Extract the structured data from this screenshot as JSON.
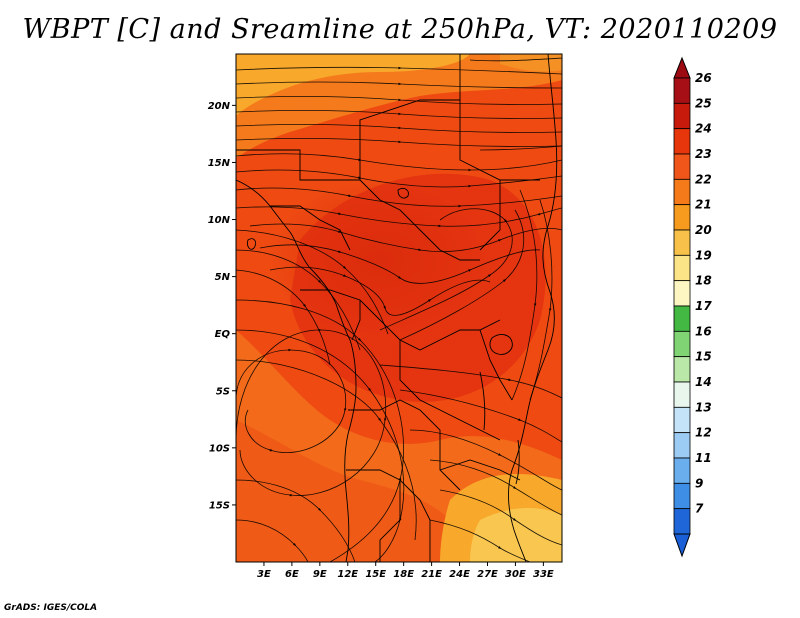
{
  "title": "WBPT [C] and Sreamline at 250hPa, VT: 2020110209",
  "footer": "GrADS: IGES/COLA",
  "map": {
    "lon_range": [
      0,
      35
    ],
    "lat_range": [
      -20,
      24.5
    ],
    "lat_ticks": [
      {
        "value": 20,
        "label": "20N"
      },
      {
        "value": 15,
        "label": "15N"
      },
      {
        "value": 10,
        "label": "10N"
      },
      {
        "value": 5,
        "label": "5N"
      },
      {
        "value": 0,
        "label": "EQ"
      },
      {
        "value": -5,
        "label": "5S"
      },
      {
        "value": -10,
        "label": "10S"
      },
      {
        "value": -15,
        "label": "15S"
      }
    ],
    "lon_ticks": [
      {
        "value": 3,
        "label": "3E"
      },
      {
        "value": 6,
        "label": "6E"
      },
      {
        "value": 9,
        "label": "9E"
      },
      {
        "value": 12,
        "label": "12E"
      },
      {
        "value": 15,
        "label": "15E"
      },
      {
        "value": 18,
        "label": "18E"
      },
      {
        "value": 21,
        "label": "21E"
      },
      {
        "value": 24,
        "label": "24E"
      },
      {
        "value": 27,
        "label": "27E"
      },
      {
        "value": 30,
        "label": "30E"
      },
      {
        "value": 33,
        "label": "33E"
      }
    ],
    "base_color": "#ee4a12"
  },
  "colorbar": {
    "levels": [
      {
        "label": "26",
        "color": "#a50f15"
      },
      {
        "label": "25",
        "color": "#c81a0c"
      },
      {
        "label": "24",
        "color": "#e8360c"
      },
      {
        "label": "23",
        "color": "#f0561a"
      },
      {
        "label": "22",
        "color": "#f47a1a"
      },
      {
        "label": "21",
        "color": "#f79b1f"
      },
      {
        "label": "20",
        "color": "#f8c14a"
      },
      {
        "label": "19",
        "color": "#fbe387"
      },
      {
        "label": "18",
        "color": "#fdf6c2"
      },
      {
        "label": "17",
        "color": "#43b843"
      },
      {
        "label": "16",
        "color": "#80d473"
      },
      {
        "label": "15",
        "color": "#b9e8a8"
      },
      {
        "label": "14",
        "color": "#e8f6ee"
      },
      {
        "label": "13",
        "color": "#c4e2f8"
      },
      {
        "label": "12",
        "color": "#9ccbf4"
      },
      {
        "label": "11",
        "color": "#6aaeee"
      },
      {
        "label": "9",
        "color": "#3f8ee6"
      },
      {
        "label": "7",
        "color": "#1f67d8"
      }
    ],
    "top_arrow_color": "#9c0a12",
    "bottom_arrow_color": "#1a5fd6"
  }
}
